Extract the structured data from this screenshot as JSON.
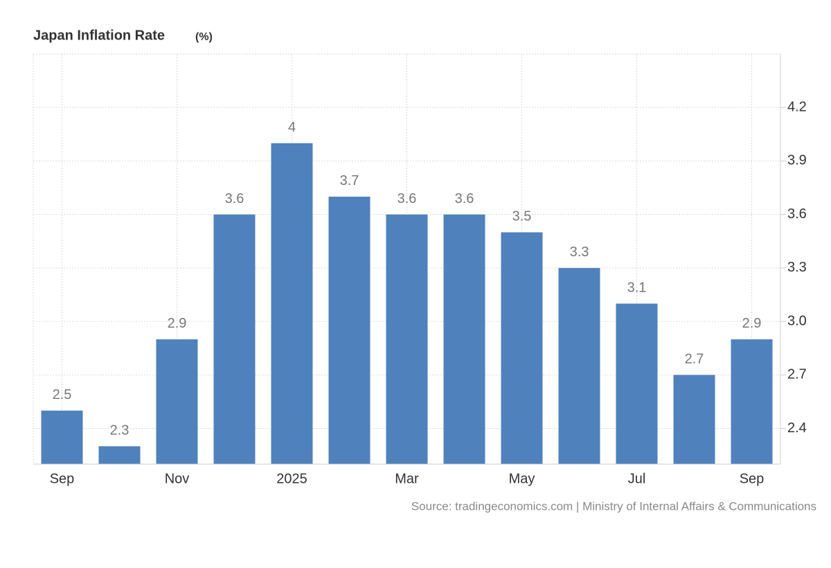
{
  "chart_data": {
    "type": "bar",
    "title": "Japan Inflation Rate",
    "unit": "(%)",
    "source": "Source: tradingeconomics.com | Ministry of Internal Affairs & Communications",
    "categories": [
      "Sep",
      null,
      "Nov",
      null,
      "2025",
      null,
      "Mar",
      null,
      "May",
      null,
      "Jul",
      null,
      "Sep"
    ],
    "values": [
      2.5,
      2.3,
      2.9,
      3.6,
      4,
      3.7,
      3.6,
      3.6,
      3.5,
      3.3,
      3.1,
      2.7,
      2.9
    ],
    "color": "#4f81bd",
    "ylim": [
      2.2,
      4.5
    ],
    "yticks": [
      2.4,
      2.7,
      {
        "value": 3,
        "label": "3.0"
      },
      3.3,
      3.6,
      3.9,
      4.2
    ],
    "grid": true,
    "y_axis_side": "right"
  }
}
